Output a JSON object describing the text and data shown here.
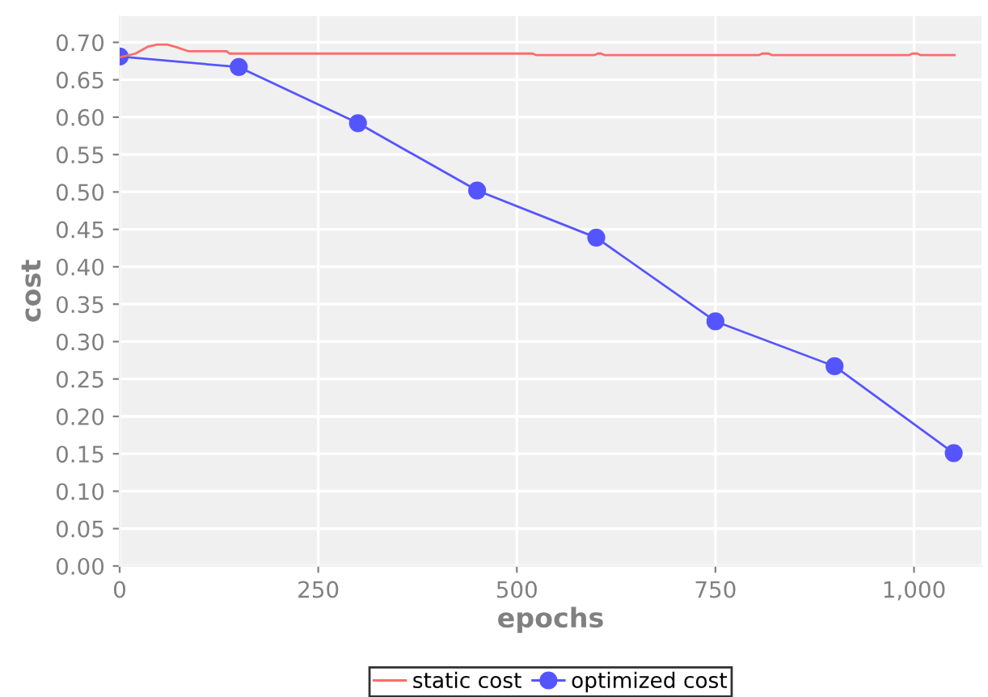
{
  "chart_data": {
    "type": "line",
    "xlabel": "epochs",
    "ylabel": "cost",
    "xlim": [
      0,
      1085
    ],
    "xticks": [
      0,
      250,
      500,
      750,
      {
        "value": 1000,
        "label": "1,000"
      }
    ],
    "ylim": [
      0,
      0.735
    ],
    "yticks": [
      {
        "value": 0,
        "label": "0.00"
      },
      0.05,
      {
        "value": 0.1,
        "label": "0.10"
      },
      0.15,
      {
        "value": 0.2,
        "label": "0.20"
      },
      0.25,
      {
        "value": 0.3,
        "label": "0.30"
      },
      0.35,
      {
        "value": 0.4,
        "label": "0.40"
      },
      0.45,
      {
        "value": 0.5,
        "label": "0.50"
      },
      0.55,
      {
        "value": 0.6,
        "label": "0.60"
      },
      0.65,
      {
        "value": 0.7,
        "label": "0.70"
      }
    ],
    "grid": true,
    "legend": "bottom",
    "series": [
      {
        "name": "static cost",
        "color": "#ff6b6b",
        "marker": "none",
        "x": [
          0,
          20,
          35,
          47,
          60,
          70,
          87,
          135,
          138,
          520,
          524,
          598,
          602,
          606,
          610,
          805,
          809,
          817,
          821,
          994,
          998,
          1004,
          1008,
          1051
        ],
        "values": [
          0.68,
          0.685,
          0.694,
          0.697,
          0.697,
          0.694,
          0.688,
          0.688,
          0.685,
          0.685,
          0.683,
          0.683,
          0.685,
          0.685,
          0.683,
          0.683,
          0.685,
          0.685,
          0.683,
          0.683,
          0.685,
          0.685,
          0.683,
          0.683
        ]
      },
      {
        "name": "optimized cost",
        "color": "#5555ff",
        "marker": "circle",
        "x": [
          0,
          150,
          300,
          450,
          600,
          750,
          900,
          1050
        ],
        "values": [
          0.681,
          0.667,
          0.592,
          0.502,
          0.439,
          0.327,
          0.267,
          0.151
        ]
      }
    ]
  }
}
